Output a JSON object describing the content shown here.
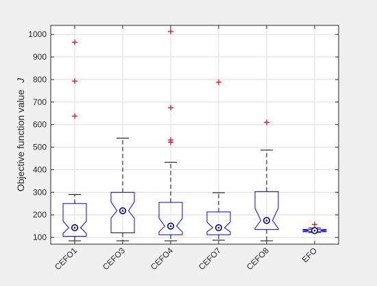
{
  "colors": {
    "background": "#f0f0f0",
    "plot_area": "#ffffff",
    "box": "#0000ff",
    "whisker": "#000000",
    "outlier": "#ff0000",
    "median_marker": "#00008b",
    "grid": "#dcdcdc",
    "axis": "#262626"
  },
  "chart_data": {
    "type": "box",
    "title": "",
    "xlabel": "",
    "ylabel": "Objective function value",
    "ylabel_symbol": "J",
    "ylim": [
      70,
      1040
    ],
    "yticks": [
      100,
      200,
      300,
      400,
      500,
      600,
      700,
      800,
      900,
      1000
    ],
    "grid": true,
    "notched": true,
    "x_tick_rotation_deg": -45,
    "categories": [
      "CEFO1",
      "CEFO3",
      "CEFO4",
      "CEFO7",
      "CEFO8",
      "EFO"
    ],
    "boxes": [
      {
        "category": "CEFO1",
        "whisker_low": 85,
        "q1": 105,
        "median": 143,
        "q3": 250,
        "whisker_high": 290,
        "notch_low": 118,
        "notch_high": 172,
        "outliers": [
          965,
          793,
          638
        ]
      },
      {
        "category": "CEFO3",
        "whisker_low": 85,
        "q1": 120,
        "median": 218,
        "q3": 300,
        "whisker_high": 540,
        "notch_low": 185,
        "notch_high": 258,
        "outliers": []
      },
      {
        "category": "CEFO4",
        "whisker_low": 85,
        "q1": 112,
        "median": 150,
        "q3": 255,
        "whisker_high": 433,
        "notch_low": 125,
        "notch_high": 185,
        "outliers": [
          1013,
          675,
          532,
          522
        ]
      },
      {
        "category": "CEFO7",
        "whisker_low": 88,
        "q1": 112,
        "median": 143,
        "q3": 213,
        "whisker_high": 298,
        "notch_low": 125,
        "notch_high": 168,
        "outliers": [
          788
        ]
      },
      {
        "category": "CEFO8",
        "whisker_low": 85,
        "q1": 135,
        "median": 175,
        "q3": 303,
        "whisker_high": 487,
        "notch_low": 140,
        "notch_high": 230,
        "outliers": [
          610
        ]
      },
      {
        "category": "EFO",
        "whisker_low": 122,
        "q1": 125,
        "median": 130,
        "q3": 135,
        "whisker_high": 142,
        "notch_low": 127,
        "notch_high": 133,
        "outliers": [
          157
        ]
      }
    ]
  }
}
